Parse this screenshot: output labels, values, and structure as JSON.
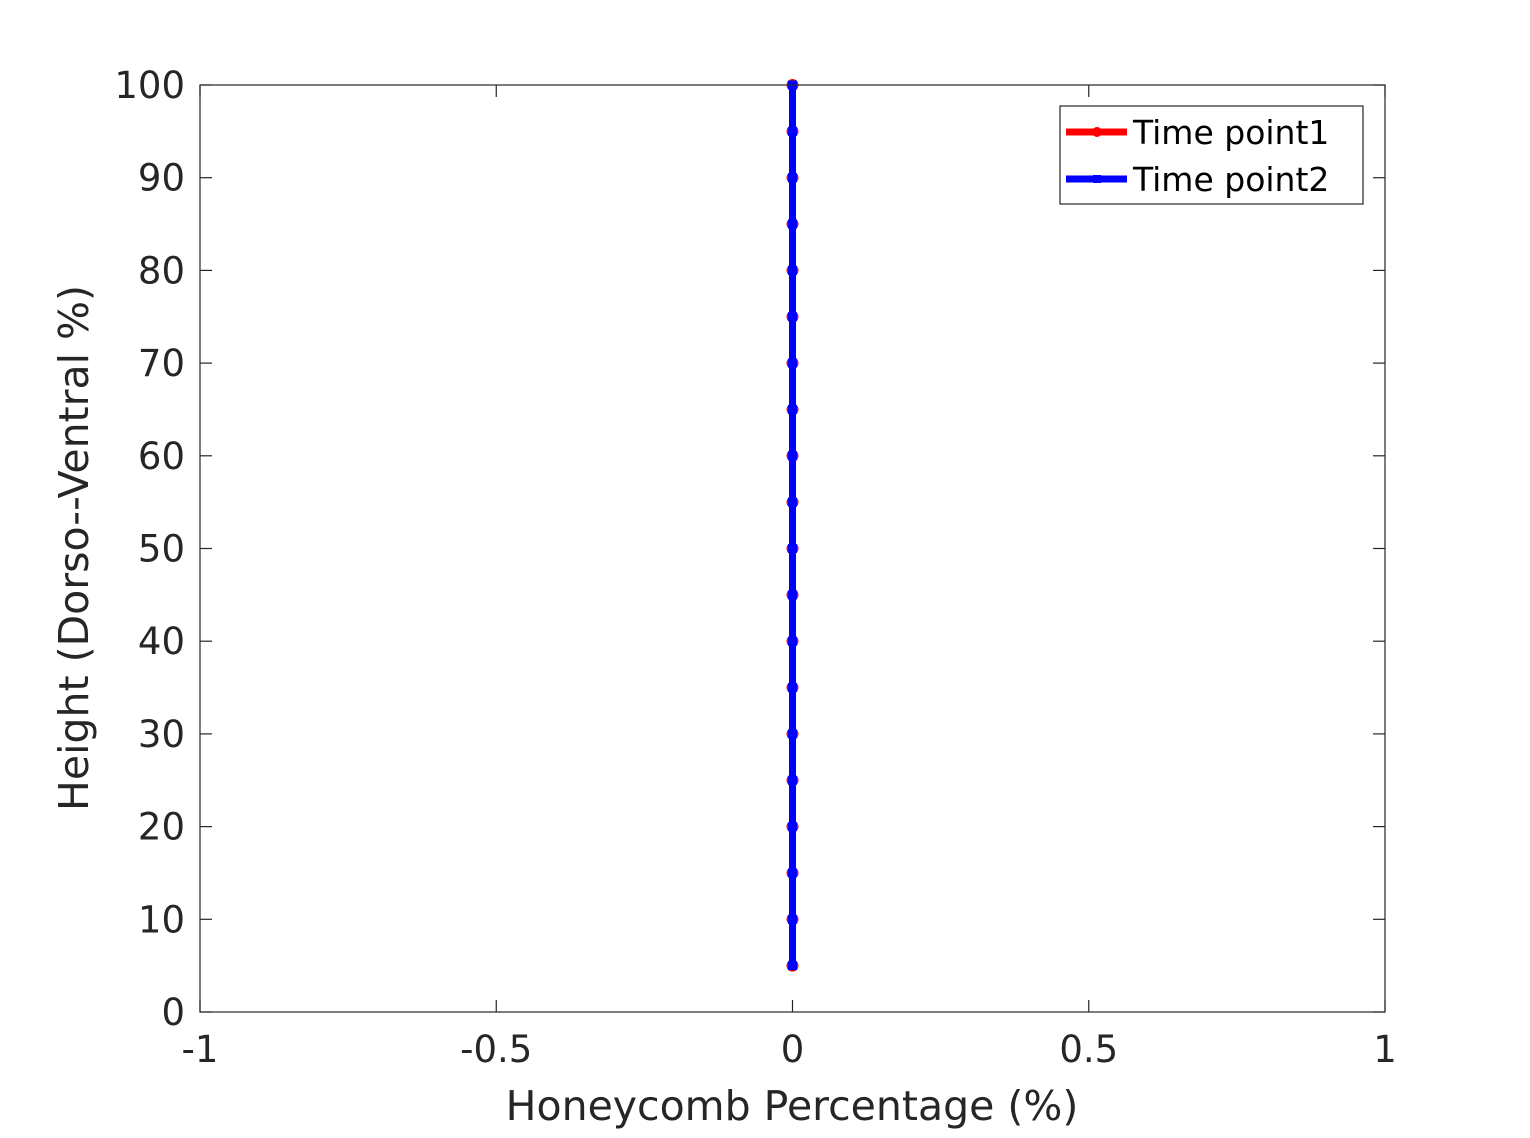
{
  "chart_data": {
    "type": "line",
    "xlabel": "Honeycomb Percentage (%)",
    "ylabel": "Height (Dorso--Ventral %)",
    "xlim": [
      -1,
      1
    ],
    "ylim": [
      0,
      100
    ],
    "xticks": [
      -1,
      -0.5,
      0,
      0.5,
      1
    ],
    "xtick_labels": [
      "-1",
      "-0.5",
      "0",
      "0.5",
      "1"
    ],
    "yticks": [
      0,
      10,
      20,
      30,
      40,
      50,
      60,
      70,
      80,
      90,
      100
    ],
    "ytick_labels": [
      "0",
      "10",
      "20",
      "30",
      "40",
      "50",
      "60",
      "70",
      "80",
      "90",
      "100"
    ],
    "grid": false,
    "legend_position": "top-right",
    "series": [
      {
        "name": "Time point1",
        "color": "#ff0000",
        "marker": "circle",
        "x": [
          0,
          0,
          0,
          0,
          0,
          0,
          0,
          0,
          0,
          0,
          0,
          0,
          0,
          0,
          0,
          0,
          0,
          0,
          0,
          0
        ],
        "y": [
          5,
          10,
          15,
          20,
          25,
          30,
          35,
          40,
          45,
          50,
          55,
          60,
          65,
          70,
          75,
          80,
          85,
          90,
          95,
          100
        ]
      },
      {
        "name": "Time point2",
        "color": "#0000ff",
        "marker": "square",
        "x": [
          0,
          0,
          0,
          0,
          0,
          0,
          0,
          0,
          0,
          0,
          0,
          0,
          0,
          0,
          0,
          0,
          0,
          0,
          0,
          0
        ],
        "y": [
          5,
          10,
          15,
          20,
          25,
          30,
          35,
          40,
          45,
          50,
          55,
          60,
          65,
          70,
          75,
          80,
          85,
          90,
          95,
          100
        ]
      }
    ]
  }
}
